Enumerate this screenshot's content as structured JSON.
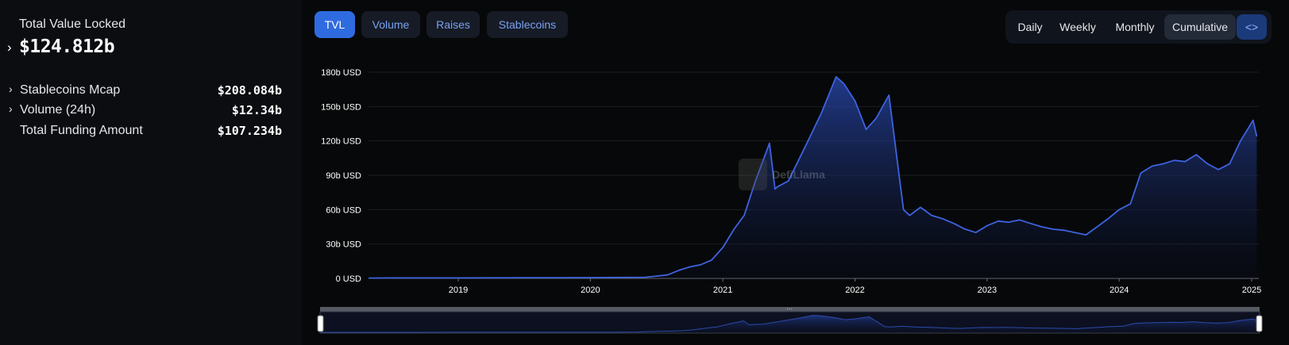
{
  "sidebar": {
    "tvl_label": "Total Value Locked",
    "tvl_value": "$124.812b",
    "stats": [
      {
        "label": "Stablecoins Mcap",
        "value": "$208.084b",
        "expandable": true
      },
      {
        "label": "Volume (24h)",
        "value": "$12.34b",
        "expandable": true
      },
      {
        "label": "Total Funding Amount",
        "value": "$107.234b",
        "expandable": false
      }
    ]
  },
  "tabs": [
    {
      "label": "TVL",
      "active": true
    },
    {
      "label": "Volume",
      "active": false
    },
    {
      "label": "Raises",
      "active": false
    },
    {
      "label": "Stablecoins",
      "active": false
    }
  ],
  "granularity": [
    {
      "label": "Daily",
      "active": false
    },
    {
      "label": "Weekly",
      "active": false
    },
    {
      "label": "Monthly",
      "active": false
    },
    {
      "label": "Cumulative",
      "active": true
    }
  ],
  "embed_label": "<>",
  "watermark": "DefiLlama",
  "colors": {
    "accent": "#2f6be0",
    "line": "#3d63e0",
    "tab_text": "#7aa2f0"
  },
  "chart_data": {
    "type": "area",
    "title": "",
    "xlabel": "",
    "ylabel": "",
    "y_unit": "USD",
    "ylim": [
      0,
      180
    ],
    "y_ticks": [
      "0 USD",
      "30b USD",
      "60b USD",
      "90b USD",
      "120b USD",
      "150b USD",
      "180b USD"
    ],
    "x_ticks": [
      "2019",
      "2020",
      "2021",
      "2022",
      "2023",
      "2024",
      "2025"
    ],
    "grid": true,
    "legend": "none",
    "series": [
      {
        "x": [
          "2018-04",
          "2018-07",
          "2018-10",
          "2019-01",
          "2019-04",
          "2019-07",
          "2019-10",
          "2020-01",
          "2020-04",
          "2020-06",
          "2020-08",
          "2020-09",
          "2020-10",
          "2020-11",
          "2020-12",
          "2021-01",
          "2021-02",
          "2021-03",
          "2021-04",
          "2021-05-10",
          "2021-05-25",
          "2021-06",
          "2021-07",
          "2021-08",
          "2021-09",
          "2021-10",
          "2021-11-10",
          "2021-12",
          "2022-01",
          "2022-02",
          "2022-03",
          "2022-04-05",
          "2022-05-05",
          "2022-05-15",
          "2022-06",
          "2022-07",
          "2022-08",
          "2022-09",
          "2022-10",
          "2022-11",
          "2022-12",
          "2023-01",
          "2023-02",
          "2023-03",
          "2023-04",
          "2023-05",
          "2023-06",
          "2023-07",
          "2023-08",
          "2023-09",
          "2023-10",
          "2023-11",
          "2023-12",
          "2024-01",
          "2024-02",
          "2024-03",
          "2024-04",
          "2024-05",
          "2024-06",
          "2024-07",
          "2024-08",
          "2024-09",
          "2024-10",
          "2024-11",
          "2024-12",
          "2025-01-05",
          "2025-01-15"
        ],
        "values": [
          0.3,
          0.4,
          0.4,
          0.4,
          0.5,
          0.6,
          0.6,
          0.7,
          0.8,
          1.0,
          3,
          7,
          10,
          12,
          16,
          27,
          43,
          55,
          85,
          118,
          78,
          80,
          85,
          105,
          125,
          145,
          176,
          170,
          155,
          130,
          140,
          160,
          85,
          60,
          55,
          62,
          55,
          52,
          48,
          43,
          40,
          46,
          50,
          49,
          51,
          48,
          45,
          43,
          42,
          40,
          38,
          45,
          52,
          60,
          65,
          92,
          98,
          100,
          103,
          102,
          108,
          100,
          95,
          100,
          120,
          138,
          124
        ]
      }
    ]
  }
}
